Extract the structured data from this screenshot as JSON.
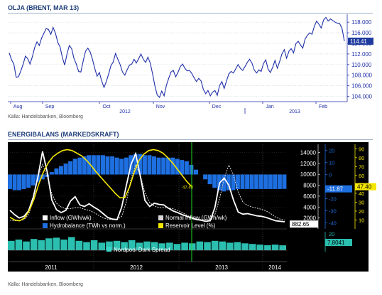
{
  "top": {
    "title": "OLJA (BRENT, MAR 13)",
    "source": "Källa: Handelsbanken, Bloomberg"
  },
  "bottom": {
    "title": "ENERGIBALANS (MARKEDSKRAFT)",
    "source": "Källa: Handelsbanken, Bloomberg"
  },
  "chart_data": [
    {
      "type": "line",
      "title": "OLJA (BRENT, MAR 13)",
      "xlabel": "",
      "ylabel": "",
      "x_tick_labels": [
        "Aug",
        "Sep",
        "Oct",
        "Nov",
        "Dec",
        "Jan",
        "Feb"
      ],
      "x_year_labels": [
        "2012",
        "2013"
      ],
      "yticks": [
        104,
        106,
        108,
        110,
        112,
        114,
        116,
        118
      ],
      "ylim": [
        103,
        119.5
      ],
      "y_axis_side": "right",
      "last_value_label": "114.41",
      "grid": true,
      "series": [
        {
          "color": "#1f2fa8",
          "values": [
            112.2,
            110.9,
            110.1,
            107.6,
            107.7,
            108.8,
            110.0,
            111.6,
            111.1,
            110.1,
            111.5,
            113.2,
            114.3,
            113.6,
            115.0,
            115.9,
            116.8,
            116.6,
            115.7,
            117.0,
            115.9,
            114.2,
            113.3,
            111.3,
            109.9,
            112.0,
            113.6,
            113.0,
            111.2,
            110.1,
            108.7,
            108.6,
            110.7,
            112.5,
            113.1,
            112.4,
            111.0,
            109.3,
            107.8,
            108.5,
            106.9,
            105.7,
            106.8,
            108.2,
            109.8,
            110.5,
            112.1,
            111.0,
            110.0,
            108.6,
            108.0,
            109.0,
            109.9,
            110.1,
            111.0,
            110.3,
            111.1,
            112.0,
            111.0,
            110.4,
            111.4,
            110.3,
            108.3,
            106.0,
            104.3,
            103.8,
            105.0,
            104.1,
            106.1,
            107.4,
            108.6,
            108.9,
            107.7,
            108.5,
            109.6,
            110.1,
            109.3,
            108.8,
            108.9,
            108.3,
            107.5,
            106.8,
            107.4,
            106.9,
            105.3,
            104.5,
            105.1,
            104.1,
            104.8,
            105.1,
            104.2,
            106.0,
            106.8,
            105.5,
            106.9,
            108.2,
            108.7,
            108.4,
            109.2,
            110.0,
            109.3,
            108.9,
            109.6,
            110.4,
            111.0,
            110.3,
            109.0,
            108.4,
            109.0,
            108.7,
            110.2,
            110.9,
            109.1,
            108.5,
            109.5,
            110.8,
            109.3,
            110.6,
            112.0,
            112.8,
            111.2,
            112.5,
            113.0,
            112.2,
            113.9,
            114.4,
            113.7,
            113.1,
            114.8,
            115.5,
            116.0,
            115.7,
            117.2,
            118.2,
            117.6,
            116.9,
            118.4,
            118.9,
            118.2,
            118.6,
            118.3,
            118.0,
            117.8,
            117.7,
            116.8,
            114.41
          ]
        }
      ]
    },
    {
      "type": "line",
      "title": "ENERGIBALANS (MARKEDSKRAFT)",
      "xlabel": "",
      "ylabel": "",
      "x_tick_labels": [
        "2011",
        "2012",
        "2013",
        "2014"
      ],
      "y_left_ticks": [
        2000,
        4000,
        6000,
        8000,
        10000,
        12000,
        14000
      ],
      "y_left_range": [
        0,
        15500
      ],
      "y_mid_ticks": [
        -40,
        -30,
        -20,
        -10,
        0,
        10,
        20
      ],
      "y_mid_range": [
        -45,
        25
      ],
      "y_right_ticks": [
        10,
        20,
        30,
        40,
        50,
        60,
        70,
        80,
        90
      ],
      "y_right_range": [
        0,
        95
      ],
      "value_labels": [
        "882.65",
        "-11.87",
        "47.40",
        "7.8041"
      ],
      "marker_label": "47.40",
      "legend": [
        {
          "name": "Inflow (GWh/wk)",
          "color": "#ffffff"
        },
        {
          "name": "Normal inflow (GWh/wk)",
          "color": "#d8d8d8"
        },
        {
          "name": "Hydrobalance (TWh vs norm.)",
          "color": "#1e6fe0"
        },
        {
          "name": "Reservoir Level (%)",
          "color": "#f5e600"
        }
      ],
      "series": [
        {
          "name": "Inflow (GWh/wk)",
          "color": "#ffffff",
          "values": [
            3400,
            2600,
            2000,
            2300,
            3300,
            5800,
            9500,
            14200,
            10400,
            5300,
            3500,
            3000,
            3400,
            5100,
            5900,
            4400,
            4100,
            4600,
            4000,
            3500,
            2800,
            2100,
            1800,
            1700,
            4000,
            8000,
            11800,
            13800,
            9600,
            5200,
            4100,
            4700,
            4500,
            4400,
            3800,
            3300,
            3000,
            2600,
            2300,
            2000,
            1700,
            1600,
            1400,
            1500,
            3900,
            8400,
            9300,
            8000,
            5300,
            3100,
            2700,
            2800,
            2600,
            2400,
            2300,
            2100,
            1800,
            1500,
            1400,
            1300
          ]
        },
        {
          "name": "Normal inflow (GWh/wk)",
          "color": "#d8d8d8",
          "values": [
            1600,
            1500,
            1500,
            1700,
            2600,
            5200,
            9500,
            11800,
            9600,
            6400,
            4700,
            4000,
            3700,
            3700,
            3900,
            3900,
            3600,
            3400,
            3000,
            2500,
            2000,
            1800,
            1700,
            1700,
            2300,
            5000,
            9200,
            11800,
            9800,
            6600,
            4800,
            4200,
            3900,
            3900,
            3800,
            3700,
            3400,
            3000,
            2500,
            2100,
            1800,
            1700,
            1700,
            1700,
            2600,
            5500,
            9300,
            11700,
            9900,
            6800,
            4900,
            4300,
            4000,
            3800,
            3600,
            3300,
            2800,
            2200,
            1800,
            1600
          ]
        },
        {
          "name": "Hydrobalance (TWh vs norm.)",
          "color": "#1e6fe0",
          "values": [
            -12,
            -13,
            -13,
            -12,
            -11,
            -9,
            -6,
            -4,
            -2,
            2,
            5,
            7,
            9,
            11,
            13,
            14,
            15,
            16,
            16,
            16,
            16,
            15,
            15,
            14,
            13,
            14,
            16,
            17,
            17,
            16,
            16,
            15,
            14,
            14,
            14,
            14,
            13,
            12,
            11,
            8,
            4,
            0,
            -4,
            -8,
            -11,
            -13,
            -14,
            -13,
            -13,
            -12,
            -12,
            -12,
            -12,
            -12,
            -12,
            -12,
            -12,
            -12,
            -12,
            -11.87
          ]
        },
        {
          "name": "Reservoir Level (%)",
          "color": "#f5e600",
          "values": [
            13,
            10,
            9,
            12,
            20,
            33,
            50,
            64,
            74,
            81,
            85,
            88,
            89,
            88,
            85,
            82,
            77,
            71,
            64,
            58,
            52,
            46,
            40,
            35,
            35,
            47,
            64,
            77,
            84,
            88,
            89,
            88,
            85,
            80,
            74,
            67,
            60,
            53,
            47.4
          ]
        },
        {
          "name": "Nordpool Dark Spread",
          "color": "#39d5c7",
          "values": [
            15,
            17,
            14,
            18,
            16,
            19,
            20,
            17,
            21,
            15,
            13,
            16,
            12,
            14,
            15,
            13,
            16,
            12,
            14,
            13,
            11,
            12,
            10,
            12,
            11,
            14,
            13,
            15,
            14,
            12,
            13,
            11,
            10,
            9,
            8,
            9,
            7.8041
          ]
        }
      ]
    }
  ]
}
